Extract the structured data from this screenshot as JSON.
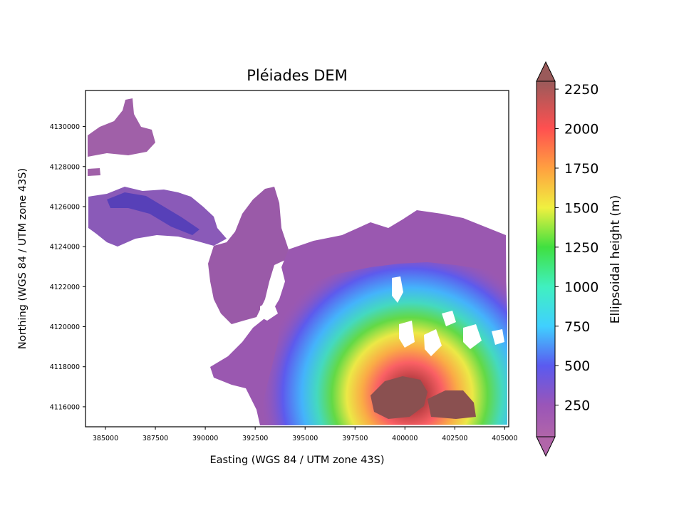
{
  "figure": {
    "title": "Pléiades DEM",
    "xlabel": "Easting (WGS 84 / UTM zone 43S)",
    "ylabel": "Northing (WGS 84 / UTM zone 43S)"
  },
  "map": {
    "x_range": [
      384000,
      405200
    ],
    "y_range": [
      4115000,
      4131800
    ],
    "x_ticks": [
      {
        "value": 385000,
        "label": "385000"
      },
      {
        "value": 387500,
        "label": "387500"
      },
      {
        "value": 390000,
        "label": "390000"
      },
      {
        "value": 392500,
        "label": "392500"
      },
      {
        "value": 395000,
        "label": "395000"
      },
      {
        "value": 397500,
        "label": "397500"
      },
      {
        "value": 400000,
        "label": "400000"
      },
      {
        "value": 402500,
        "label": "402500"
      },
      {
        "value": 405000,
        "label": "405000"
      }
    ],
    "y_ticks": [
      {
        "value": 4116000,
        "label": "4116000"
      },
      {
        "value": 4118000,
        "label": "4118000"
      },
      {
        "value": 4120000,
        "label": "4120000"
      },
      {
        "value": 4122000,
        "label": "4122000"
      },
      {
        "value": 4124000,
        "label": "4124000"
      },
      {
        "value": 4126000,
        "label": "4126000"
      },
      {
        "value": 4128000,
        "label": "4128000"
      },
      {
        "value": 4130000,
        "label": "4130000"
      }
    ],
    "summit": {
      "easting": 400200,
      "northing": 4116400,
      "height_m": 2250
    },
    "nodata_color": "#ffffff"
  },
  "colorbar": {
    "label": "Ellipsoidal height (m)",
    "range": [
      50,
      2300
    ],
    "extend": "both",
    "colormap": "nipy_spectral-like",
    "ticks": [
      {
        "value": 250,
        "label": "250"
      },
      {
        "value": 500,
        "label": "500"
      },
      {
        "value": 750,
        "label": "750"
      },
      {
        "value": 1000,
        "label": "1000"
      },
      {
        "value": 1250,
        "label": "1250"
      },
      {
        "value": 1500,
        "label": "1500"
      },
      {
        "value": 1750,
        "label": "1750"
      },
      {
        "value": 2000,
        "label": "2000"
      },
      {
        "value": 2250,
        "label": "2250"
      }
    ],
    "stops": [
      {
        "value": 50,
        "color": "#b165a9"
      },
      {
        "value": 250,
        "color": "#9a55b8"
      },
      {
        "value": 500,
        "color": "#5a5af0"
      },
      {
        "value": 750,
        "color": "#40d0ff"
      },
      {
        "value": 1000,
        "color": "#40f0c0"
      },
      {
        "value": 1250,
        "color": "#40e040"
      },
      {
        "value": 1500,
        "color": "#f0f040"
      },
      {
        "value": 1750,
        "color": "#ffa040"
      },
      {
        "value": 2000,
        "color": "#ff5050"
      },
      {
        "value": 2300,
        "color": "#9a5a5a"
      }
    ],
    "under_color": "#b165a9",
    "over_color": "#9a5a5a"
  }
}
